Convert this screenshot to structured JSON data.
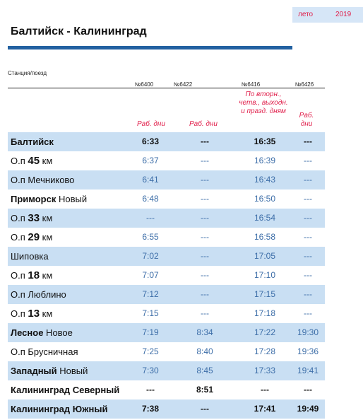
{
  "season": {
    "label": "лето",
    "year": "2019"
  },
  "title": "Балтийск - Калининград",
  "column_caption": "Станция/поезд",
  "trains": [
    {
      "number": "№6400",
      "note": "Раб. дни"
    },
    {
      "number": "№6422",
      "note": "Раб. дни"
    },
    {
      "number": "№6416",
      "note": "По вторн., четв., выходн. и празд. дням"
    },
    {
      "number": "№6426",
      "note": "Раб. дни"
    }
  ],
  "stations": [
    {
      "prefix": "",
      "bold": "Балтийск",
      "num": "",
      "unit": "",
      "suffix": "",
      "times": [
        "6:33",
        "---",
        "16:35",
        "---"
      ],
      "emphasis": true
    },
    {
      "prefix": "О.п ",
      "bold": "",
      "num": "45",
      "unit": " км",
      "suffix": "",
      "times": [
        "6:37",
        "---",
        "16:39",
        "---"
      ],
      "emphasis": false
    },
    {
      "prefix": "О.п Мечниково",
      "bold": "",
      "num": "",
      "unit": "",
      "suffix": "",
      "times": [
        "6:41",
        "---",
        "16:43",
        "---"
      ],
      "emphasis": false
    },
    {
      "prefix": "",
      "bold": "Приморск",
      "num": "",
      "unit": "",
      "suffix": " Новый",
      "times": [
        "6:48",
        "---",
        "16:50",
        "---"
      ],
      "emphasis": false
    },
    {
      "prefix": "О.п ",
      "bold": "",
      "num": "33",
      "unit": " км",
      "suffix": "",
      "times": [
        "---",
        "---",
        "16:54",
        "---"
      ],
      "emphasis": false
    },
    {
      "prefix": "О.п ",
      "bold": "",
      "num": "29",
      "unit": " км",
      "suffix": "",
      "times": [
        "6:55",
        "---",
        "16:58",
        "---"
      ],
      "emphasis": false
    },
    {
      "prefix": "Шиповка",
      "bold": "",
      "num": "",
      "unit": "",
      "suffix": "",
      "times": [
        "7:02",
        "---",
        "17:05",
        "---"
      ],
      "emphasis": false
    },
    {
      "prefix": "О.п ",
      "bold": "",
      "num": "18",
      "unit": " км",
      "suffix": "",
      "times": [
        "7:07",
        "---",
        "17:10",
        "---"
      ],
      "emphasis": false
    },
    {
      "prefix": "О.п Люблино",
      "bold": "",
      "num": "",
      "unit": "",
      "suffix": "",
      "times": [
        "7:12",
        "---",
        "17:15",
        "---"
      ],
      "emphasis": false
    },
    {
      "prefix": "О.п ",
      "bold": "",
      "num": "13",
      "unit": " км",
      "suffix": "",
      "times": [
        "7:15",
        "---",
        "17:18",
        "---"
      ],
      "emphasis": false
    },
    {
      "prefix": "",
      "bold": "Лесное",
      "num": "",
      "unit": "",
      "suffix": " Новое",
      "times": [
        "7:19",
        "8:34",
        "17:22",
        "19:30"
      ],
      "emphasis": false
    },
    {
      "prefix": "О.п Брусничная",
      "bold": "",
      "num": "",
      "unit": "",
      "suffix": "",
      "times": [
        "7:25",
        "8:40",
        "17:28",
        "19:36"
      ],
      "emphasis": false
    },
    {
      "prefix": "",
      "bold": "Западный",
      "num": "",
      "unit": "",
      "suffix": " Новый",
      "times": [
        "7:30",
        "8:45",
        "17:33",
        "19:41"
      ],
      "emphasis": false
    },
    {
      "prefix": "",
      "bold": "Калининград Северный",
      "num": "",
      "unit": "",
      "suffix": "",
      "times": [
        "---",
        "8:51",
        "---",
        "---"
      ],
      "emphasis": true
    },
    {
      "prefix": "",
      "bold": "Калининград Южный",
      "num": "",
      "unit": "",
      "suffix": "",
      "times": [
        "7:38",
        "---",
        "17:41",
        "19:49"
      ],
      "emphasis": true
    }
  ]
}
